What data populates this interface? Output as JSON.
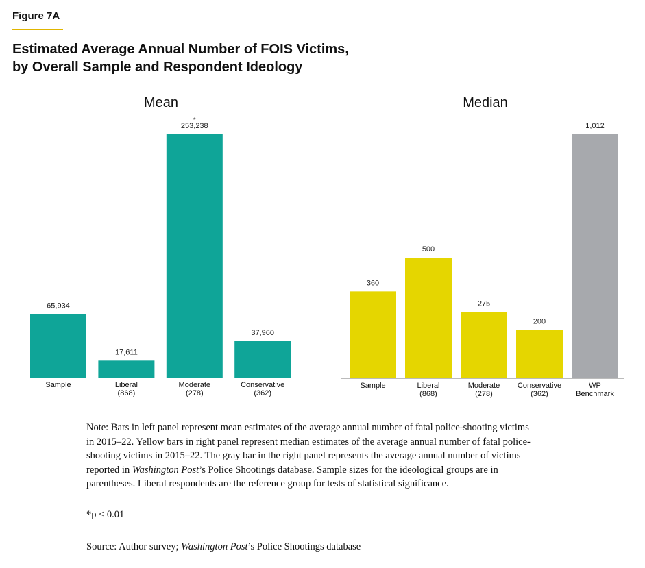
{
  "figure_label": "Figure 7A",
  "title": [
    "Estimated Average Annual Number of FOIS Victims,",
    "by Overall Sample and Respondent Ideology"
  ],
  "chart_data": [
    {
      "type": "bar",
      "title": "Mean",
      "categories": [
        "Sample",
        "Liberal\n(868)",
        "Moderate\n(278)",
        "Conservative\n(362)"
      ],
      "values": [
        65934,
        17611,
        253238,
        37960
      ],
      "value_labels": [
        "65,934",
        "17,611",
        "253,238",
        "37,960"
      ],
      "significance": [
        null,
        null,
        "*",
        null
      ],
      "colors": [
        "#0fa598",
        "#0fa598",
        "#0fa598",
        "#0fa598"
      ]
    },
    {
      "type": "bar",
      "title": "Median",
      "categories": [
        "Sample",
        "Liberal\n(868)",
        "Moderate\n(278)",
        "Conservative\n(362)",
        "WP\nBenchmark"
      ],
      "values": [
        360,
        500,
        275,
        200,
        1012
      ],
      "value_labels": [
        "360",
        "500",
        "275",
        "200",
        "1,012"
      ],
      "colors": [
        "#e5d600",
        "#e5d600",
        "#e5d600",
        "#e5d600",
        "#a7a9ad"
      ]
    }
  ],
  "note": [
    "Note: Bars in left panel represent mean estimates of the average annual number of fatal police-shooting victims in 2015–22. Yellow bars in right panel represent median estimates of the average annual number of fatal police-shooting victims in 2015–22. The gray bar in the right panel represents the average annual number of victims reported in ",
    "Washington Post",
    "’s Police Shootings database. Sample sizes for the ideological groups are in parentheses. Liberal respondents are the reference group for tests of statistical significance."
  ],
  "significance_note": "*p < 0.01",
  "source": [
    "Source: Author survey; ",
    "Washington Post",
    "’s Police Shootings database"
  ]
}
